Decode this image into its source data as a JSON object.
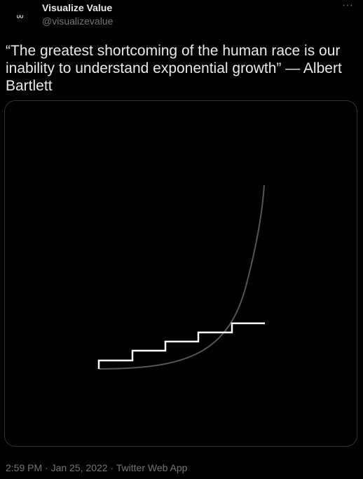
{
  "tweet": {
    "author": {
      "display_name": "Visualize Value",
      "handle": "@visualizevalue",
      "avatar_mark": "ᵁᵁ"
    },
    "more_label": "···",
    "text": "“The greatest shortcoming of the human race is our inability to understand exponential growth” — Albert Bartlett",
    "meta": {
      "time": "2:59 PM",
      "separator": "·",
      "date": "Jan 25, 2022",
      "source": "Twitter Web App"
    }
  },
  "colors": {
    "background": "#000000",
    "text": "#e7e9ea",
    "secondary": "#71767b",
    "border": "#2f3336",
    "curve": "#555555",
    "steps": "#ffffff"
  },
  "icons": {
    "more": "more-dots-icon"
  }
}
